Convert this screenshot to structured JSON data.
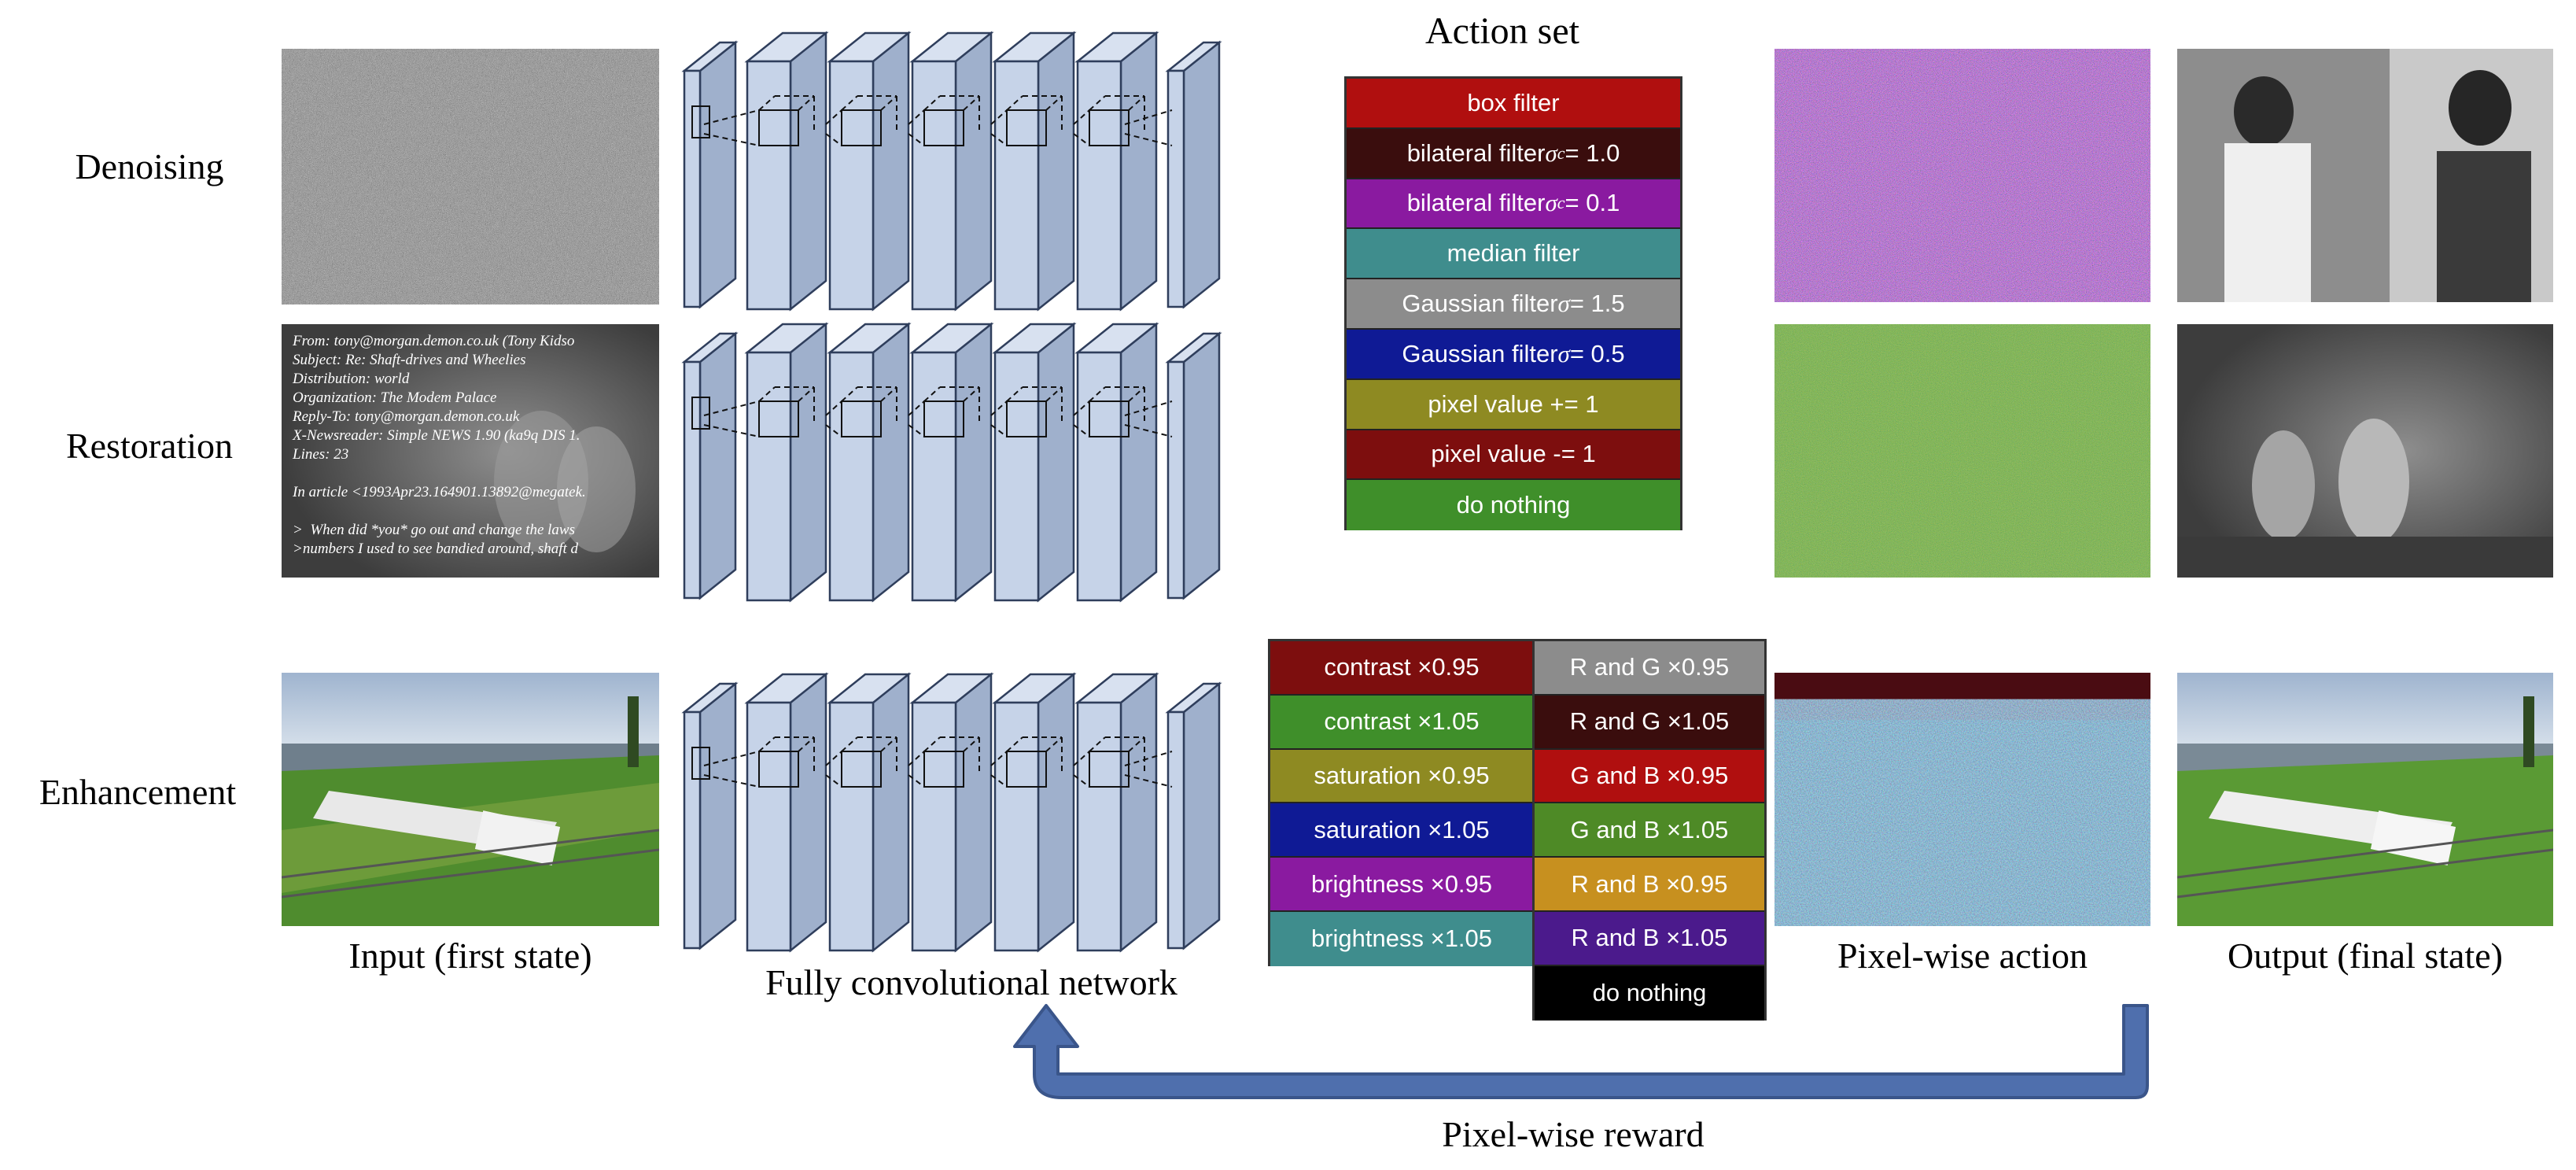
{
  "rows": {
    "denoising": "Denoising",
    "restoration": "Restoration",
    "enhancement": "Enhancement"
  },
  "captions": {
    "input": "Input (first state)",
    "fcn": "Fully convolutional network",
    "pixel_action": "Pixel-wise action",
    "output": "Output (final state)",
    "reward": "Pixel-wise reward"
  },
  "action_set": {
    "title": "Action set",
    "items": [
      {
        "label": "box filter",
        "color": "#b00f0f"
      },
      {
        "label_pre": "bilateral filter ",
        "sym": "σ",
        "sub": "c",
        "label_post": " = 1.0",
        "color": "#3a0d0d"
      },
      {
        "label_pre": "bilateral filter ",
        "sym": "σ",
        "sub": "c",
        "label_post": " = 0.1",
        "color": "#8a1aa0"
      },
      {
        "label": "median filter",
        "color": "#3f8d8d"
      },
      {
        "label_pre": "Gaussian filter ",
        "sym": "σ",
        "label_post": " = 1.5",
        "color": "#8c8c8c"
      },
      {
        "label_pre": "Gaussian filter ",
        "sym": "σ",
        "label_post": " = 0.5",
        "color": "#0f1a95"
      },
      {
        "label": "pixel value += 1",
        "color": "#8e8a22"
      },
      {
        "label": "pixel value -= 1",
        "color": "#7d0e0e"
      },
      {
        "label": "do nothing",
        "color": "#3f8f2a"
      }
    ]
  },
  "enhancement_actions": {
    "left": [
      {
        "label": "contrast ×0.95",
        "color": "#7d0e0e"
      },
      {
        "label": "contrast ×1.05",
        "color": "#3f8f2a"
      },
      {
        "label": "saturation ×0.95",
        "color": "#8e8a22"
      },
      {
        "label": "saturation ×1.05",
        "color": "#0f1a95"
      },
      {
        "label": "brightness ×0.95",
        "color": "#8a1aa0"
      },
      {
        "label": "brightness ×1.05",
        "color": "#3f8d8d"
      }
    ],
    "right": [
      {
        "label": "R and G ×0.95",
        "color": "#8c8c8c"
      },
      {
        "label": "R and G ×1.05",
        "color": "#3a0d0d"
      },
      {
        "label": "G and B ×0.95",
        "color": "#b00f0f"
      },
      {
        "label": "G and B ×1.05",
        "color": "#4e8a26"
      },
      {
        "label": "R and B ×0.95",
        "color": "#c7901f"
      },
      {
        "label": "R and B ×1.05",
        "color": "#4b1a8c"
      },
      {
        "label": "do nothing",
        "color": "#000000"
      }
    ]
  },
  "restoration_text": [
    "From: tony@morgan.demon.co.uk (Tony Kidso",
    "Subject: Re: Shaft-drives and Wheelies",
    "Distribution: world",
    "Organization: The Modem Palace",
    "Reply-To: tony@morgan.demon.co.uk",
    "X-Newsreader: Simple NEWS 1.90 (ka9q DIS 1.",
    "Lines: 23",
    "",
    "In article <1993Apr23.164901.13892@megatek.",
    "",
    ">  When did *you* go out and change the laws",
    ">numbers I used to see bandied around, shaft d"
  ],
  "colors": {
    "arrow": "#4f6fad",
    "arrow_edge": "#3a558a",
    "layer_face": "#c6d3e8",
    "layer_edge": "#2f3e5c"
  }
}
